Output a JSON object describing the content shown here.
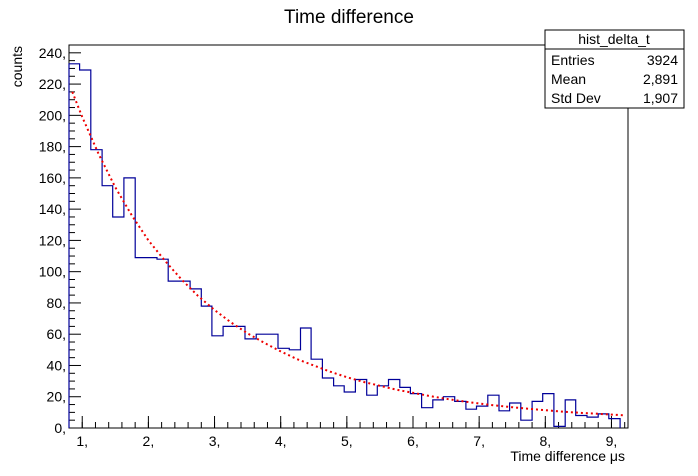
{
  "chart_data": {
    "type": "histogram",
    "title": "Time difference",
    "xlabel": "Time difference μs",
    "ylabel": "counts",
    "xlim": [
      0.8,
      9.25
    ],
    "ylim": [
      0,
      245
    ],
    "xticks": [
      1,
      2,
      3,
      4,
      5,
      6,
      7,
      8,
      9
    ],
    "xtick_labels": [
      "1,",
      "2,",
      "3,",
      "4,",
      "5,",
      "6,",
      "7,",
      "8,",
      "9,"
    ],
    "yticks": [
      0,
      20,
      40,
      60,
      80,
      100,
      120,
      140,
      160,
      180,
      200,
      220,
      240
    ],
    "ytick_labels": [
      "0,",
      "20,",
      "40,",
      "60,",
      "80,",
      "100,",
      "120,",
      "140,",
      "160,",
      "180,",
      "200,",
      "220,",
      "240,"
    ],
    "bin_edges": [
      0.8,
      0.96,
      1.13,
      1.3,
      1.46,
      1.63,
      1.8,
      1.96,
      2.13,
      2.3,
      2.46,
      2.63,
      2.8,
      2.96,
      3.13,
      3.3,
      3.46,
      3.63,
      3.8,
      3.96,
      4.13,
      4.3,
      4.46,
      4.63,
      4.8,
      4.96,
      5.13,
      5.3,
      5.46,
      5.63,
      5.8,
      5.96,
      6.13,
      6.3,
      6.46,
      6.63,
      6.8,
      6.96,
      7.13,
      7.3,
      7.46,
      7.63,
      7.8,
      7.96,
      8.13,
      8.3,
      8.46,
      8.63,
      8.8,
      8.96,
      9.13
    ],
    "counts": [
      233,
      229,
      178,
      155,
      135,
      160,
      109,
      109,
      108,
      94,
      94,
      89,
      78,
      59,
      65,
      65,
      57,
      60,
      60,
      51,
      50,
      64,
      44,
      32,
      27,
      23,
      31,
      21,
      27,
      31,
      26,
      22,
      13,
      18,
      20,
      17,
      12,
      14,
      21,
      11,
      16,
      5,
      17,
      22,
      1,
      18,
      8,
      7,
      9,
      6
    ],
    "series": [
      {
        "name": "hist_delta_t",
        "style": "step",
        "color": "#000099"
      },
      {
        "name": "fit",
        "style": "dotted",
        "color": "#ee0000",
        "function": "exponential",
        "points": [
          [
            0.85,
            215
          ],
          [
            1.0,
            199
          ],
          [
            1.25,
            175
          ],
          [
            1.5,
            154
          ],
          [
            1.75,
            136
          ],
          [
            2.0,
            120
          ],
          [
            2.25,
            107
          ],
          [
            2.5,
            95
          ],
          [
            2.75,
            84.5
          ],
          [
            3.0,
            75.5
          ],
          [
            3.25,
            67.5
          ],
          [
            3.5,
            60.5
          ],
          [
            3.75,
            54.5
          ],
          [
            4.0,
            49
          ],
          [
            4.25,
            44
          ],
          [
            4.5,
            40
          ],
          [
            4.75,
            36
          ],
          [
            5.0,
            32.5
          ],
          [
            5.25,
            29.5
          ],
          [
            5.5,
            27
          ],
          [
            5.75,
            24.5
          ],
          [
            6.0,
            22.5
          ],
          [
            6.25,
            20.5
          ],
          [
            6.5,
            18.7
          ],
          [
            6.75,
            17.1
          ],
          [
            7.0,
            15.7
          ],
          [
            7.25,
            14.4
          ],
          [
            7.5,
            13.3
          ],
          [
            7.75,
            12.3
          ],
          [
            8.0,
            11.4
          ],
          [
            8.25,
            10.5
          ],
          [
            8.5,
            9.8
          ],
          [
            8.75,
            9.2
          ],
          [
            9.0,
            8.6
          ],
          [
            9.2,
            8.1
          ]
        ]
      }
    ],
    "grid": false,
    "stats_box": {
      "title": "hist_delta_t",
      "placement": "top-right",
      "rows": [
        {
          "label": "Entries",
          "value": "3924"
        },
        {
          "label": "Mean",
          "value": "2,891"
        },
        {
          "label": "Std Dev",
          "value": "1,907"
        }
      ]
    }
  }
}
